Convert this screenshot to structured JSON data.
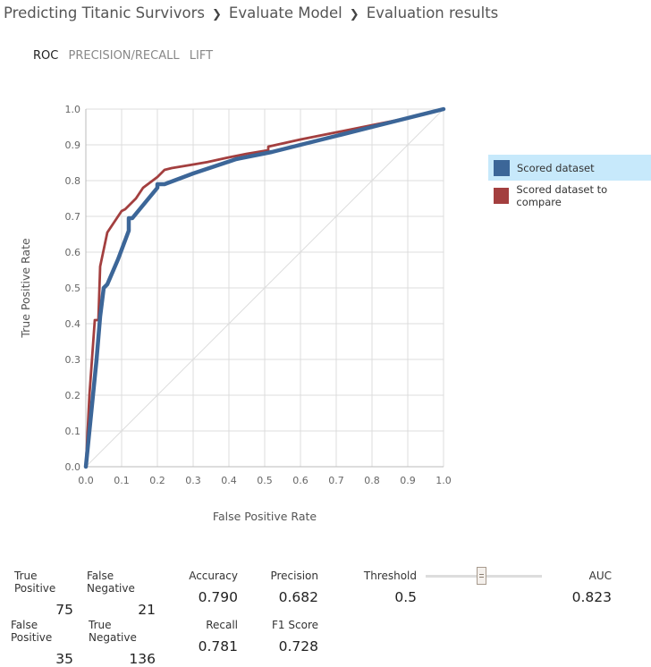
{
  "breadcrumb": [
    "Predicting Titanic Survivors",
    "Evaluate Model",
    "Evaluation results"
  ],
  "tabs": [
    {
      "label": "ROC",
      "active": true
    },
    {
      "label": "PRECISION/RECALL",
      "active": false
    },
    {
      "label": "LIFT",
      "active": false
    }
  ],
  "chart_data": {
    "type": "line",
    "xlabel": "False Positive Rate",
    "ylabel": "True Positive Rate",
    "xlim": [
      0,
      1
    ],
    "ylim": [
      0,
      1
    ],
    "x_ticks": [
      "0.0",
      "0.1",
      "0.2",
      "0.3",
      "0.4",
      "0.5",
      "0.6",
      "0.7",
      "0.8",
      "0.9",
      "1.0"
    ],
    "y_ticks": [
      "0.0",
      "0.1",
      "0.2",
      "0.3",
      "0.4",
      "0.5",
      "0.6",
      "0.7",
      "0.8",
      "0.9",
      "1.0"
    ],
    "grid": true,
    "legend_position": "right",
    "diagonal_reference": true,
    "series": [
      {
        "name": "Scored dataset",
        "color": "#3c6698",
        "points": [
          [
            0,
            0
          ],
          [
            0.015,
            0.15
          ],
          [
            0.03,
            0.3
          ],
          [
            0.04,
            0.42
          ],
          [
            0.05,
            0.5
          ],
          [
            0.06,
            0.51
          ],
          [
            0.09,
            0.58
          ],
          [
            0.12,
            0.66
          ],
          [
            0.12,
            0.695
          ],
          [
            0.13,
            0.695
          ],
          [
            0.2,
            0.78
          ],
          [
            0.2,
            0.79
          ],
          [
            0.22,
            0.79
          ],
          [
            0.3,
            0.82
          ],
          [
            0.42,
            0.86
          ],
          [
            0.43,
            0.862
          ],
          [
            0.52,
            0.88
          ],
          [
            0.6,
            0.9
          ],
          [
            0.7,
            0.925
          ],
          [
            0.8,
            0.95
          ],
          [
            0.9,
            0.975
          ],
          [
            1.0,
            1.0
          ]
        ]
      },
      {
        "name": "Scored dataset to compare",
        "color": "#a33f3f",
        "points": [
          [
            0,
            0
          ],
          [
            0.01,
            0.2
          ],
          [
            0.02,
            0.34
          ],
          [
            0.025,
            0.41
          ],
          [
            0.035,
            0.41
          ],
          [
            0.04,
            0.56
          ],
          [
            0.06,
            0.655
          ],
          [
            0.1,
            0.715
          ],
          [
            0.11,
            0.72
          ],
          [
            0.14,
            0.75
          ],
          [
            0.16,
            0.78
          ],
          [
            0.2,
            0.81
          ],
          [
            0.22,
            0.83
          ],
          [
            0.24,
            0.835
          ],
          [
            0.3,
            0.845
          ],
          [
            0.34,
            0.852
          ],
          [
            0.4,
            0.865
          ],
          [
            0.45,
            0.875
          ],
          [
            0.51,
            0.885
          ],
          [
            0.51,
            0.895
          ],
          [
            0.6,
            0.915
          ],
          [
            0.7,
            0.935
          ],
          [
            0.8,
            0.955
          ],
          [
            0.9,
            0.975
          ],
          [
            1.0,
            1.0
          ]
        ]
      }
    ]
  },
  "metrics": {
    "true_positive": {
      "label": "True Positive",
      "value": "75"
    },
    "false_negative": {
      "label": "False Negative",
      "value": "21"
    },
    "false_positive": {
      "label": "False Positive",
      "value": "35"
    },
    "true_negative": {
      "label": "True Negative",
      "value": "136"
    },
    "accuracy": {
      "label": "Accuracy",
      "value": "0.790"
    },
    "precision": {
      "label": "Precision",
      "value": "0.682"
    },
    "recall": {
      "label": "Recall",
      "value": "0.781"
    },
    "f1": {
      "label": "F1 Score",
      "value": "0.728"
    },
    "threshold": {
      "label": "Threshold",
      "value": "0.5"
    },
    "auc": {
      "label": "AUC",
      "value": "0.823"
    }
  },
  "threshold_slider": {
    "value": 0.5,
    "min": 0,
    "max": 1
  }
}
